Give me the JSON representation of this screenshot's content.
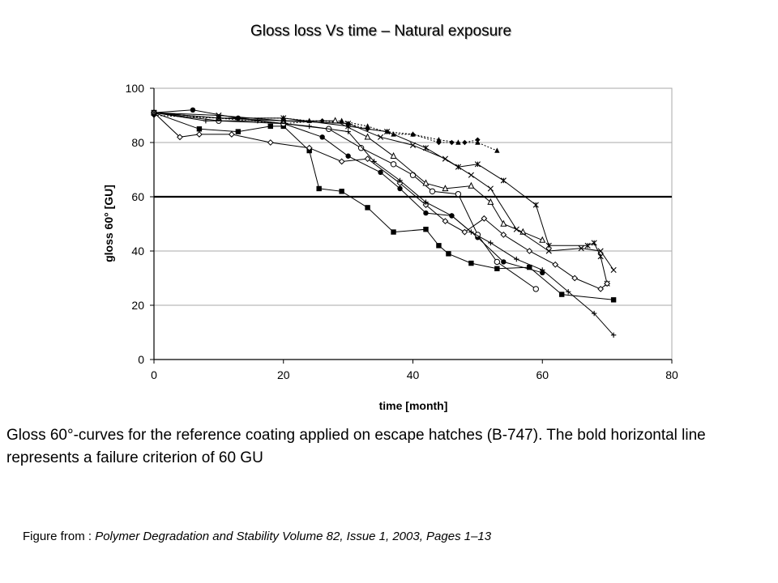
{
  "slide": {
    "title": "Gloss loss Vs time – Natural exposure",
    "caption": "Gloss 60°-curves for the reference coating applied on escape hatches (B-747). The bold horizontal line represents a failure criterion of 60 GU",
    "source_label": "Figure from :",
    "source_ref": "Polymer Degradation and Stability Volume 82, Issue 1, 2003, Pages 1–13"
  },
  "chart_data": {
    "type": "line",
    "title": "",
    "xlabel": "time [month]",
    "ylabel": "gloss 60° [GU]",
    "xlim": [
      0,
      80
    ],
    "ylim": [
      0,
      100
    ],
    "xticks": [
      0,
      20,
      40,
      60,
      80
    ],
    "yticks": [
      0,
      20,
      40,
      60,
      80,
      100
    ],
    "grid": "horizontal",
    "legend": "none",
    "criterion": {
      "y": 60
    },
    "colors": {
      "lines": "#000000",
      "grid": "#aaaaaa",
      "criterion": "#000000"
    },
    "series": [
      {
        "marker": "square",
        "dash": false,
        "points": [
          [
            0,
            91
          ],
          [
            7,
            85
          ],
          [
            13,
            84
          ],
          [
            18,
            86
          ],
          [
            20,
            86
          ],
          [
            24,
            77
          ],
          [
            25.5,
            63
          ],
          [
            29,
            62
          ],
          [
            33,
            56
          ],
          [
            37,
            47
          ],
          [
            42,
            48
          ],
          [
            44,
            42
          ],
          [
            45.5,
            39
          ],
          [
            49,
            35.5
          ],
          [
            53,
            33.5
          ],
          [
            58,
            34
          ],
          [
            63,
            24
          ],
          [
            71,
            22
          ]
        ]
      },
      {
        "marker": "circle-filled",
        "dash": false,
        "points": [
          [
            0,
            91
          ],
          [
            6,
            92
          ],
          [
            13,
            89
          ],
          [
            20,
            87
          ],
          [
            26,
            82
          ],
          [
            30,
            75
          ],
          [
            35,
            69
          ],
          [
            38,
            63
          ],
          [
            42,
            54
          ],
          [
            46,
            53
          ],
          [
            50,
            45
          ],
          [
            54,
            36
          ],
          [
            60,
            32
          ]
        ]
      },
      {
        "marker": "triangle-filled",
        "dash": true,
        "points": [
          [
            0,
            91
          ],
          [
            10,
            89
          ],
          [
            20,
            89
          ],
          [
            24,
            88
          ],
          [
            29,
            88
          ],
          [
            33,
            86
          ],
          [
            37,
            83
          ],
          [
            40,
            83
          ],
          [
            44,
            81
          ],
          [
            47,
            80
          ],
          [
            50,
            80
          ],
          [
            53,
            77
          ]
        ]
      },
      {
        "marker": "diamond-filled",
        "dash": true,
        "points": [
          [
            0,
            90
          ],
          [
            10,
            89
          ],
          [
            20,
            87
          ],
          [
            26,
            88
          ],
          [
            30,
            87
          ],
          [
            33,
            85
          ],
          [
            36,
            84
          ],
          [
            40,
            83
          ],
          [
            44,
            80
          ],
          [
            46,
            80
          ],
          [
            48,
            80
          ],
          [
            50,
            81
          ]
        ]
      },
      {
        "marker": "circle-open",
        "dash": false,
        "points": [
          [
            0,
            91
          ],
          [
            10,
            88
          ],
          [
            20,
            87
          ],
          [
            27,
            85
          ],
          [
            32,
            78
          ],
          [
            37,
            72
          ],
          [
            40,
            68
          ],
          [
            43,
            62
          ],
          [
            47,
            61
          ],
          [
            50,
            46
          ],
          [
            53,
            36
          ],
          [
            59,
            26
          ]
        ]
      },
      {
        "marker": "triangle-open",
        "dash": false,
        "points": [
          [
            0,
            91
          ],
          [
            10,
            89
          ],
          [
            20,
            88
          ],
          [
            28,
            88
          ],
          [
            33,
            82
          ],
          [
            37,
            75
          ],
          [
            42,
            65
          ],
          [
            45,
            63
          ],
          [
            49,
            64
          ],
          [
            52,
            58
          ],
          [
            54,
            50
          ],
          [
            57,
            47
          ],
          [
            60,
            44
          ]
        ]
      },
      {
        "marker": "x",
        "dash": false,
        "points": [
          [
            0,
            91
          ],
          [
            10,
            90
          ],
          [
            20,
            88
          ],
          [
            30,
            87
          ],
          [
            35,
            82
          ],
          [
            40,
            79
          ],
          [
            45,
            74
          ],
          [
            49,
            68
          ],
          [
            52,
            63
          ],
          [
            56,
            48
          ],
          [
            61,
            40
          ],
          [
            66,
            41
          ],
          [
            69,
            40
          ],
          [
            71,
            33
          ]
        ]
      },
      {
        "marker": "star",
        "dash": false,
        "points": [
          [
            0,
            91
          ],
          [
            10,
            89
          ],
          [
            20,
            89
          ],
          [
            30,
            86
          ],
          [
            36,
            84
          ],
          [
            42,
            78
          ],
          [
            47,
            71
          ],
          [
            50,
            72
          ],
          [
            54,
            66
          ],
          [
            59,
            57
          ],
          [
            61,
            42
          ],
          [
            67,
            42
          ],
          [
            68,
            43
          ],
          [
            69,
            38
          ],
          [
            70,
            28
          ]
        ]
      },
      {
        "marker": "diamond-open",
        "dash": false,
        "points": [
          [
            0,
            91
          ],
          [
            4,
            82
          ],
          [
            7,
            83
          ],
          [
            12,
            83
          ],
          [
            18,
            80
          ],
          [
            24,
            78
          ],
          [
            29,
            73
          ],
          [
            33,
            74
          ],
          [
            38,
            65
          ],
          [
            42,
            57
          ],
          [
            45,
            51
          ],
          [
            48,
            47
          ],
          [
            51,
            52
          ],
          [
            54,
            46
          ],
          [
            58,
            40
          ],
          [
            62,
            35
          ],
          [
            65,
            30
          ],
          [
            69,
            26
          ],
          [
            70,
            28
          ]
        ]
      },
      {
        "marker": "plus",
        "dash": false,
        "points": [
          [
            0,
            91
          ],
          [
            8,
            88
          ],
          [
            16,
            88
          ],
          [
            24,
            86
          ],
          [
            30,
            84
          ],
          [
            34,
            73
          ],
          [
            38,
            66
          ],
          [
            42,
            58
          ],
          [
            46,
            53
          ],
          [
            49,
            47
          ],
          [
            52,
            43
          ],
          [
            56,
            37
          ],
          [
            60,
            33
          ],
          [
            64,
            25
          ],
          [
            68,
            17
          ],
          [
            71,
            9
          ]
        ]
      }
    ]
  }
}
